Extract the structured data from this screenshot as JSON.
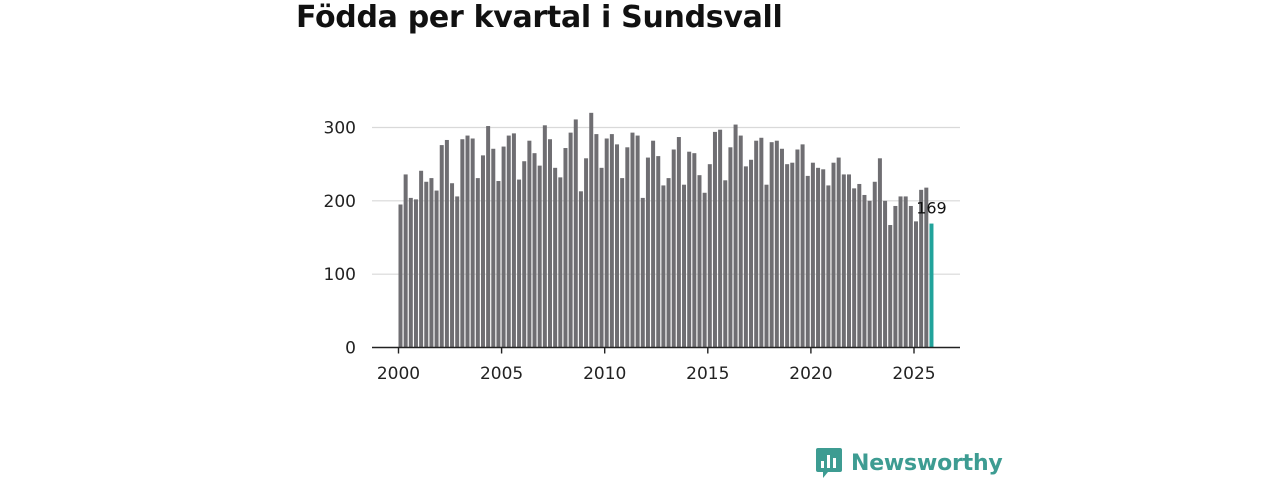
{
  "chart_data": {
    "type": "bar",
    "title": "Födda per kvartal i Sundsvall",
    "xlabel": "",
    "ylabel": "",
    "ylim": [
      0,
      320
    ],
    "yticks": [
      0,
      100,
      200,
      300
    ],
    "xticks": [
      2000,
      2005,
      2010,
      2015,
      2020,
      2025
    ],
    "x_start": 2000,
    "grid": true,
    "bar_color": "#6f6e72",
    "highlight_color": "#21a39b",
    "highlight_label": "169",
    "values": [
      195,
      236,
      204,
      202,
      241,
      226,
      231,
      214,
      276,
      283,
      224,
      206,
      284,
      289,
      285,
      231,
      262,
      302,
      271,
      227,
      274,
      289,
      292,
      229,
      254,
      282,
      265,
      248,
      303,
      284,
      245,
      232,
      272,
      293,
      311,
      213,
      258,
      320,
      291,
      245,
      285,
      291,
      277,
      231,
      273,
      293,
      289,
      204,
      259,
      282,
      261,
      221,
      231,
      270,
      287,
      222,
      267,
      265,
      235,
      211,
      250,
      294,
      297,
      228,
      273,
      304,
      289,
      247,
      256,
      282,
      286,
      222,
      280,
      282,
      271,
      250,
      252,
      270,
      277,
      234,
      252,
      245,
      243,
      221,
      252,
      259,
      236,
      236,
      217,
      223,
      208,
      200,
      226,
      258,
      200,
      167,
      193,
      206,
      206,
      193,
      172,
      215,
      218,
      169
    ]
  },
  "brand": {
    "name": "Newsworthy",
    "color": "#3d9c92"
  }
}
